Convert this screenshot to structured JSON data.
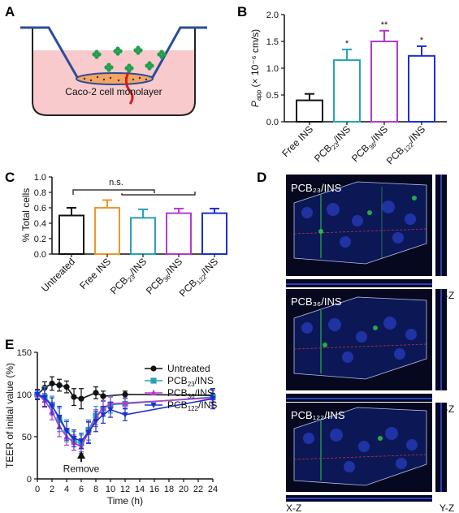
{
  "panels": {
    "A": {
      "letter": "A",
      "label": "Caco-2 cell monolayer"
    },
    "B": {
      "letter": "B"
    },
    "C": {
      "letter": "C"
    },
    "D": {
      "letter": "D",
      "image_titles": [
        "PCB₂₃/INS",
        "PCB₃₆/INS",
        "PCB₁₂₂/INS"
      ],
      "side_labels": {
        "xz": "X-Z",
        "yz": "Y-Z"
      }
    },
    "E": {
      "letter": "E",
      "annotation": "Remove"
    }
  },
  "colors": {
    "black": "#111111",
    "teal": "#26a3b3",
    "purple": "#b13bd0",
    "blue": "#1d2fd0",
    "orange": "#f0962a",
    "red": "#e02a2a",
    "pink": "#f6b8bb",
    "green": "#1fa04a"
  },
  "chart_data": [
    {
      "id": "B",
      "type": "bar",
      "categories": [
        "Free INS",
        "PCB23/INS",
        "PCB36/INS",
        "PCB122/INS"
      ],
      "values": [
        0.4,
        1.15,
        1.5,
        1.23
      ],
      "errors": [
        0.12,
        0.2,
        0.2,
        0.18
      ],
      "significance": [
        "",
        "*",
        "**",
        "*"
      ],
      "ylabel": "Papp (× 10⁻⁶ cm/s)",
      "ylim": [
        0,
        2.0
      ],
      "yticks": [
        "0.0",
        "0.5",
        "1.0",
        "1.5",
        "2.0"
      ],
      "bar_colors": [
        "#111111",
        "#26a3b3",
        "#b13bd0",
        "#1d2fd0"
      ]
    },
    {
      "id": "C",
      "type": "bar",
      "categories": [
        "Untreated",
        "Free INS",
        "PCB23/INS",
        "PCB36/INS",
        "PCB122/INS"
      ],
      "values": [
        0.5,
        0.6,
        0.47,
        0.53,
        0.53
      ],
      "errors": [
        0.1,
        0.1,
        0.11,
        0.06,
        0.06
      ],
      "ylabel": "% Total cells",
      "ylim": [
        0,
        1.0
      ],
      "yticks": [
        "0.0",
        "0.2",
        "0.4",
        "0.6",
        "0.8",
        "1.0"
      ],
      "annotation": "n.s.",
      "bar_colors": [
        "#111111",
        "#f0962a",
        "#26a3b3",
        "#b13bd0",
        "#1d2fd0"
      ]
    },
    {
      "id": "E",
      "type": "line",
      "xlabel": "Time (h)",
      "ylabel": "TEER of initial value (%)",
      "xlim": [
        0,
        24
      ],
      "ylim": [
        0,
        150
      ],
      "xticks": [
        "0",
        "2",
        "4",
        "6",
        "8",
        "10",
        "12",
        "14",
        "16",
        "18",
        "20",
        "22",
        "24"
      ],
      "yticks": [
        "0",
        "50",
        "100",
        "150"
      ],
      "legend_position": "top-right",
      "series": [
        {
          "name": "Untreated",
          "color": "#111111",
          "marker": "circle",
          "x": [
            0,
            1,
            2,
            3,
            4,
            5,
            6,
            8,
            9,
            12,
            24
          ],
          "y": [
            100,
            108,
            113,
            111,
            109,
            97,
            95,
            102,
            98,
            100,
            99
          ],
          "err": [
            6,
            7,
            8,
            7,
            7,
            10,
            12,
            7,
            6,
            4,
            8
          ]
        },
        {
          "name": "PCB23/INS",
          "color": "#26a3b3",
          "marker": "square",
          "x": [
            0,
            1,
            2,
            3,
            4,
            5,
            6,
            7,
            8,
            9,
            10,
            12,
            24
          ],
          "y": [
            100,
            97,
            88,
            70,
            57,
            45,
            42,
            58,
            75,
            83,
            88,
            89,
            97
          ],
          "err": [
            5,
            12,
            10,
            14,
            13,
            11,
            10,
            12,
            11,
            9,
            10,
            6,
            10
          ]
        },
        {
          "name": "PCB36/INS",
          "color": "#b13bd0",
          "marker": "triangle-up",
          "x": [
            0,
            1,
            2,
            3,
            4,
            5,
            6,
            7,
            8,
            9,
            10,
            12,
            24
          ],
          "y": [
            100,
            93,
            80,
            62,
            50,
            43,
            38,
            55,
            72,
            84,
            89,
            90,
            96
          ],
          "err": [
            5,
            8,
            10,
            12,
            10,
            9,
            8,
            12,
            10,
            9,
            8,
            6,
            9
          ]
        },
        {
          "name": "PCB122/INS",
          "color": "#1d2fd0",
          "marker": "triangle-down",
          "x": [
            0,
            1,
            2,
            3,
            4,
            5,
            6,
            7,
            8,
            9,
            10,
            12,
            24
          ],
          "y": [
            100,
            96,
            86,
            73,
            57,
            48,
            45,
            55,
            68,
            76,
            82,
            76,
            95
          ],
          "err": [
            5,
            10,
            10,
            13,
            11,
            10,
            9,
            13,
            12,
            10,
            9,
            7,
            12
          ]
        }
      ]
    }
  ]
}
